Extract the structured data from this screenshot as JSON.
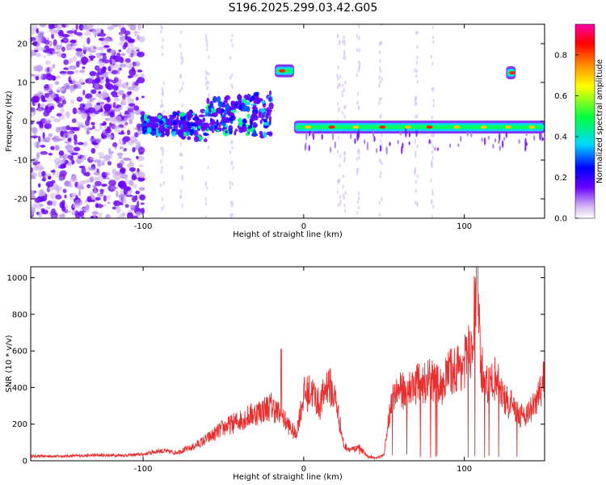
{
  "title": "S196.2025.299.03.42.G05",
  "chart_data": [
    {
      "type": "heatmap",
      "title": "S196.2025.299.03.42.G05",
      "xlabel": "Height of straight line (km)",
      "ylabel": "Frequency (Hz)",
      "xlim": [
        -170,
        150
      ],
      "ylim": [
        -25,
        25
      ],
      "x_ticks": [
        -100,
        0,
        100
      ],
      "y_ticks": [
        -20,
        -10,
        0,
        10,
        20
      ],
      "x_tick_labels": [
        "-100",
        "0",
        "100"
      ],
      "y_tick_labels": [
        "-20",
        "-10",
        "0",
        "10",
        "20"
      ],
      "colorbar": {
        "label": "Normalized spectral amplitude",
        "range": [
          0,
          0.95
        ],
        "ticks": [
          "0.0",
          "0.2",
          "0.4",
          "0.6",
          "0.8"
        ],
        "tick_values": [
          0.0,
          0.2,
          0.4,
          0.6,
          0.8
        ],
        "colors": [
          "#ffffff",
          "#d4b8f0",
          "#6a00ff",
          "#0000ff",
          "#00d8ff",
          "#00ff40",
          "#ffff00",
          "#ff8000",
          "#ff0000",
          "#ff00a0"
        ]
      },
      "tone_segments": [
        {
          "x_start": -18,
          "x_end": -6,
          "freq": 13
        },
        {
          "x_start": 126,
          "x_end": 132,
          "freq": 12.5
        },
        {
          "x_start": -6,
          "x_end": 150,
          "freq": -1.5
        }
      ]
    },
    {
      "type": "line",
      "xlabel": "Height of straight line (km)",
      "ylabel": "SNR (10 * v/v)",
      "xlim": [
        -170,
        150
      ],
      "ylim": [
        0,
        1060
      ],
      "x_ticks": [
        -100,
        0,
        100
      ],
      "y_ticks": [
        0,
        200,
        400,
        600,
        800,
        1000
      ],
      "x_tick_labels": [
        "-100",
        "0",
        "100"
      ],
      "y_tick_labels": [
        "0",
        "200",
        "400",
        "600",
        "800",
        "1000"
      ],
      "series": [
        {
          "name": "SNR",
          "color": "#e83030",
          "x": [
            -170,
            -150,
            -130,
            -110,
            -100,
            -90,
            -80,
            -70,
            -60,
            -50,
            -40,
            -30,
            -20,
            -15,
            -10,
            -5,
            0,
            5,
            10,
            15,
            20,
            25,
            30,
            35,
            40,
            45,
            50,
            55,
            60,
            65,
            70,
            75,
            80,
            85,
            90,
            95,
            100,
            105,
            108,
            110,
            115,
            120,
            125,
            130,
            135,
            140,
            145,
            150
          ],
          "y": [
            25,
            25,
            30,
            30,
            35,
            55,
            45,
            70,
            120,
            180,
            220,
            260,
            300,
            250,
            200,
            140,
            360,
            380,
            300,
            430,
            330,
            80,
            60,
            70,
            20,
            15,
            30,
            370,
            380,
            390,
            420,
            430,
            440,
            400,
            480,
            500,
            540,
            620,
            1060,
            520,
            400,
            460,
            330,
            300,
            250,
            260,
            320,
            460
          ]
        }
      ]
    }
  ]
}
